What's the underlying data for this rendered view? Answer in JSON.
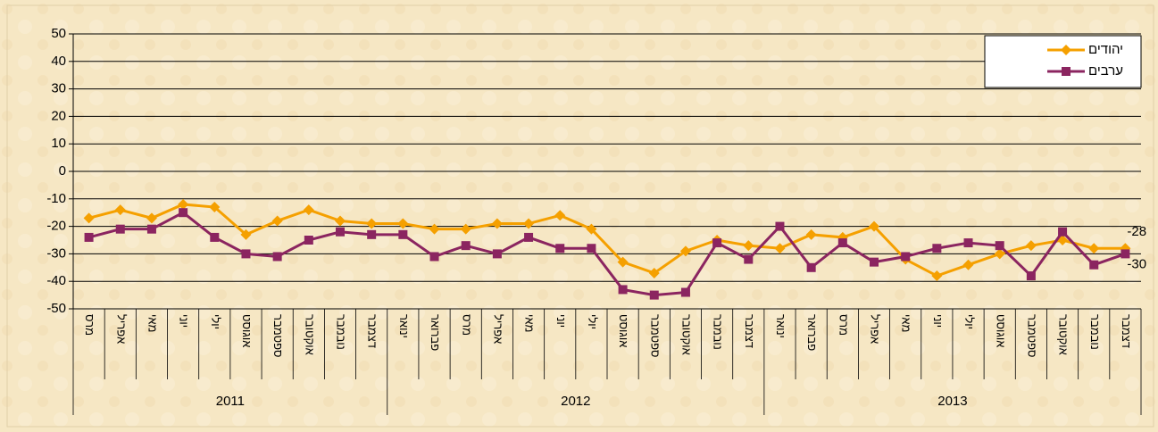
{
  "chart_data": {
    "type": "line",
    "groups": [
      {
        "year": "2011",
        "months": [
          "מרס",
          "אפריל",
          "מאי",
          "יוני",
          "יולי",
          "אוגוסט",
          "ספטמבר",
          "אוקטובר",
          "נובמבר",
          "דצמבר"
        ]
      },
      {
        "year": "2012",
        "months": [
          "ינואר",
          "פברואר",
          "מרס",
          "אפריל",
          "מאי",
          "יוני",
          "יולי",
          "אוגוסט",
          "ספטמבר",
          "אוקטובר",
          "נובמבר",
          "דצמבר"
        ]
      },
      {
        "year": "2013",
        "months": [
          "ינואר",
          "פברואר",
          "מרס",
          "אפריל",
          "מאי",
          "יוני",
          "יולי",
          "אוגוסט",
          "ספטמבר",
          "אוקטובר",
          "נובמבר",
          "דצמבר"
        ]
      }
    ],
    "series": [
      {
        "name": "יהודים",
        "color": "#f5a000",
        "marker": "diamond",
        "label_last": true,
        "values": [
          -17,
          -14,
          -17,
          -12,
          -13,
          -23,
          -18,
          -14,
          -18,
          -19,
          -19,
          -21,
          -21,
          -19,
          -19,
          -16,
          -21,
          -33,
          -37,
          -29,
          -25,
          -27,
          -28,
          -23,
          -24,
          -20,
          -32,
          -38,
          -34,
          -30,
          -27,
          -25,
          -28,
          -28
        ]
      },
      {
        "name": "ערבים",
        "color": "#8b2560",
        "marker": "square",
        "label_last": true,
        "values": [
          -24,
          -21,
          -21,
          -15,
          -24,
          -30,
          -31,
          -25,
          -22,
          -23,
          -23,
          -31,
          -27,
          -30,
          -24,
          -28,
          -28,
          -43,
          -45,
          -44,
          -26,
          -32,
          -20,
          -35,
          -26,
          -33,
          -31,
          -28,
          -26,
          -27,
          -38,
          -22,
          -34,
          -30
        ]
      }
    ],
    "ylim": [
      -50,
      50
    ],
    "yticks": [
      -50,
      -40,
      -30,
      -20,
      -10,
      0,
      10,
      20,
      30,
      40,
      50
    ],
    "grid": true,
    "legend": "top-right"
  }
}
